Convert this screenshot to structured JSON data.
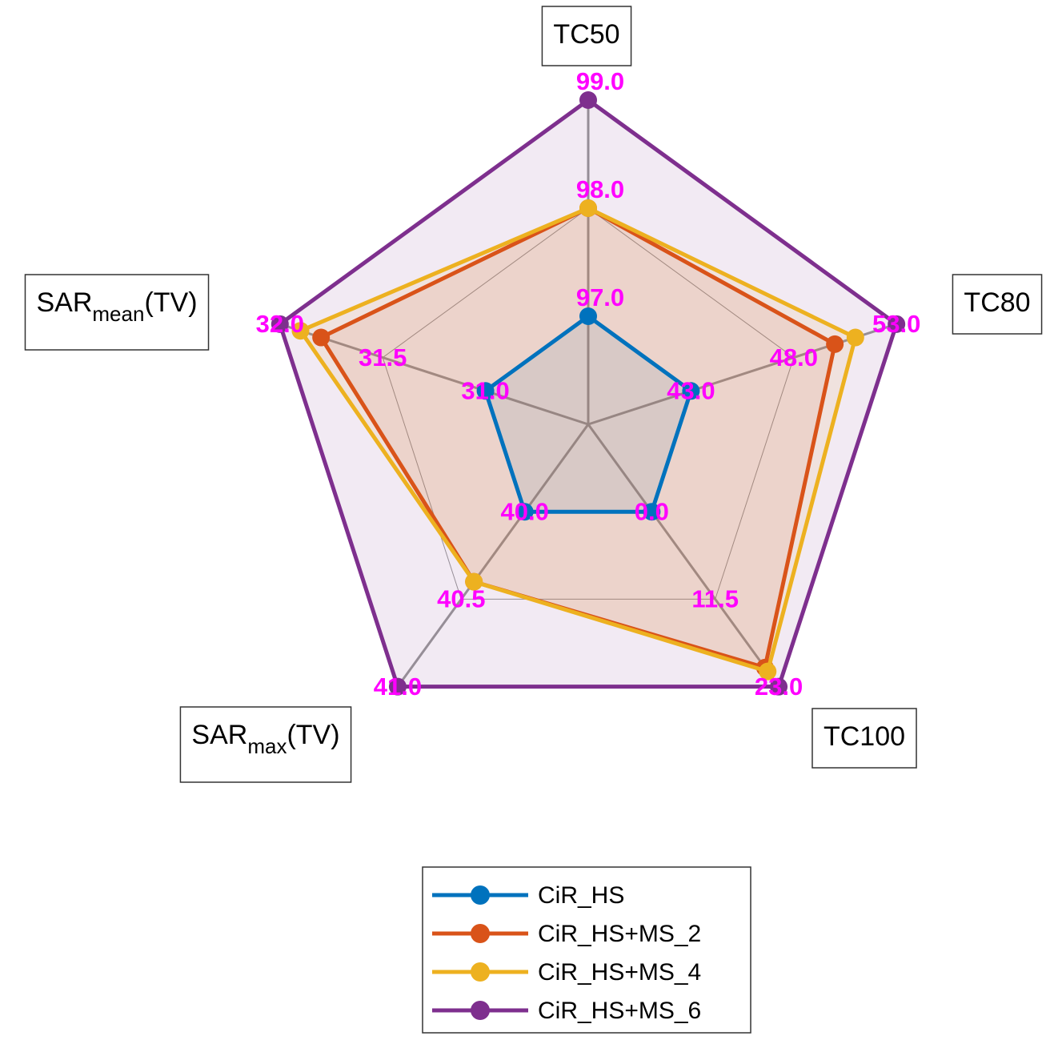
{
  "chart_data": {
    "type": "radar",
    "axes": [
      {
        "label": [
          "TC50"
        ],
        "lim": [
          96,
          99
        ],
        "ticks": [
          {
            "value": 97,
            "label": "97.0"
          },
          {
            "value": 98,
            "label": "98.0"
          },
          {
            "value": 99,
            "label": "99.0"
          }
        ]
      },
      {
        "label": [
          "TC80"
        ],
        "lim": [
          38,
          53
        ],
        "ticks": [
          {
            "value": 43,
            "label": "43.0"
          },
          {
            "value": 48,
            "label": "48.0"
          },
          {
            "value": 53,
            "label": "53.0"
          }
        ]
      },
      {
        "label": [
          "TC100"
        ],
        "lim": [
          -11.5,
          23
        ],
        "ticks": [
          {
            "value": 0,
            "label": "0.0"
          },
          11.5,
          {
            "value": 23,
            "label": "23.0"
          }
        ]
      },
      {
        "label": [
          "SAR",
          "max",
          "(TV)"
        ],
        "lim": [
          39.5,
          41
        ],
        "ticks": [
          {
            "value": 40,
            "label": "40.0"
          },
          40.5,
          {
            "value": 41,
            "label": "41.0"
          }
        ]
      },
      {
        "label": [
          "SAR",
          "mean",
          "(TV)"
        ],
        "lim": [
          30.5,
          32
        ],
        "ticks": [
          {
            "value": 31,
            "label": "31.0"
          },
          31.5,
          {
            "value": 32,
            "label": "32.0"
          }
        ]
      }
    ],
    "series": [
      {
        "name": "CiR_HS",
        "color": "#0072bd",
        "values": [
          97,
          43,
          0,
          40,
          31
        ]
      },
      {
        "name": "CiR_HS+MS_2",
        "color": "#d95319",
        "values": [
          98,
          50,
          20.5,
          40.4,
          31.8
        ]
      },
      {
        "name": "CiR_HS+MS_4",
        "color": "#edb120",
        "values": [
          98,
          51,
          21,
          40.4,
          31.9
        ]
      },
      {
        "name": "CiR_HS+MS_6",
        "color": "#7e2f8e",
        "values": [
          99,
          53,
          23,
          41,
          32
        ]
      }
    ],
    "tick_color": "#ff00ff"
  }
}
